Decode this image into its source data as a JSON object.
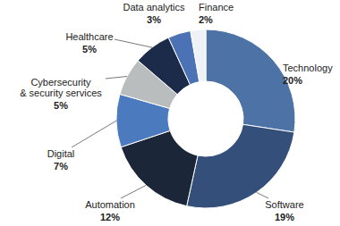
{
  "chart_data": {
    "type": "pie",
    "categories": [
      "Technology",
      "Software",
      "Automation",
      "Digital",
      "Cybersecurity & security services",
      "Healthcare",
      "Data analytics",
      "Finance"
    ],
    "values": [
      20,
      19,
      12,
      7,
      5,
      5,
      3,
      2
    ],
    "value_labels": [
      "20%",
      "19%",
      "12%",
      "7%",
      "5%",
      "5%",
      "3%",
      "2%"
    ],
    "colors": [
      "#4d72a6",
      "#34507a",
      "#1b2638",
      "#4b7abf",
      "#b9bdbe",
      "#1c2b4a",
      "#4a72b5",
      "#eef1f5"
    ],
    "data_labels": true
  }
}
